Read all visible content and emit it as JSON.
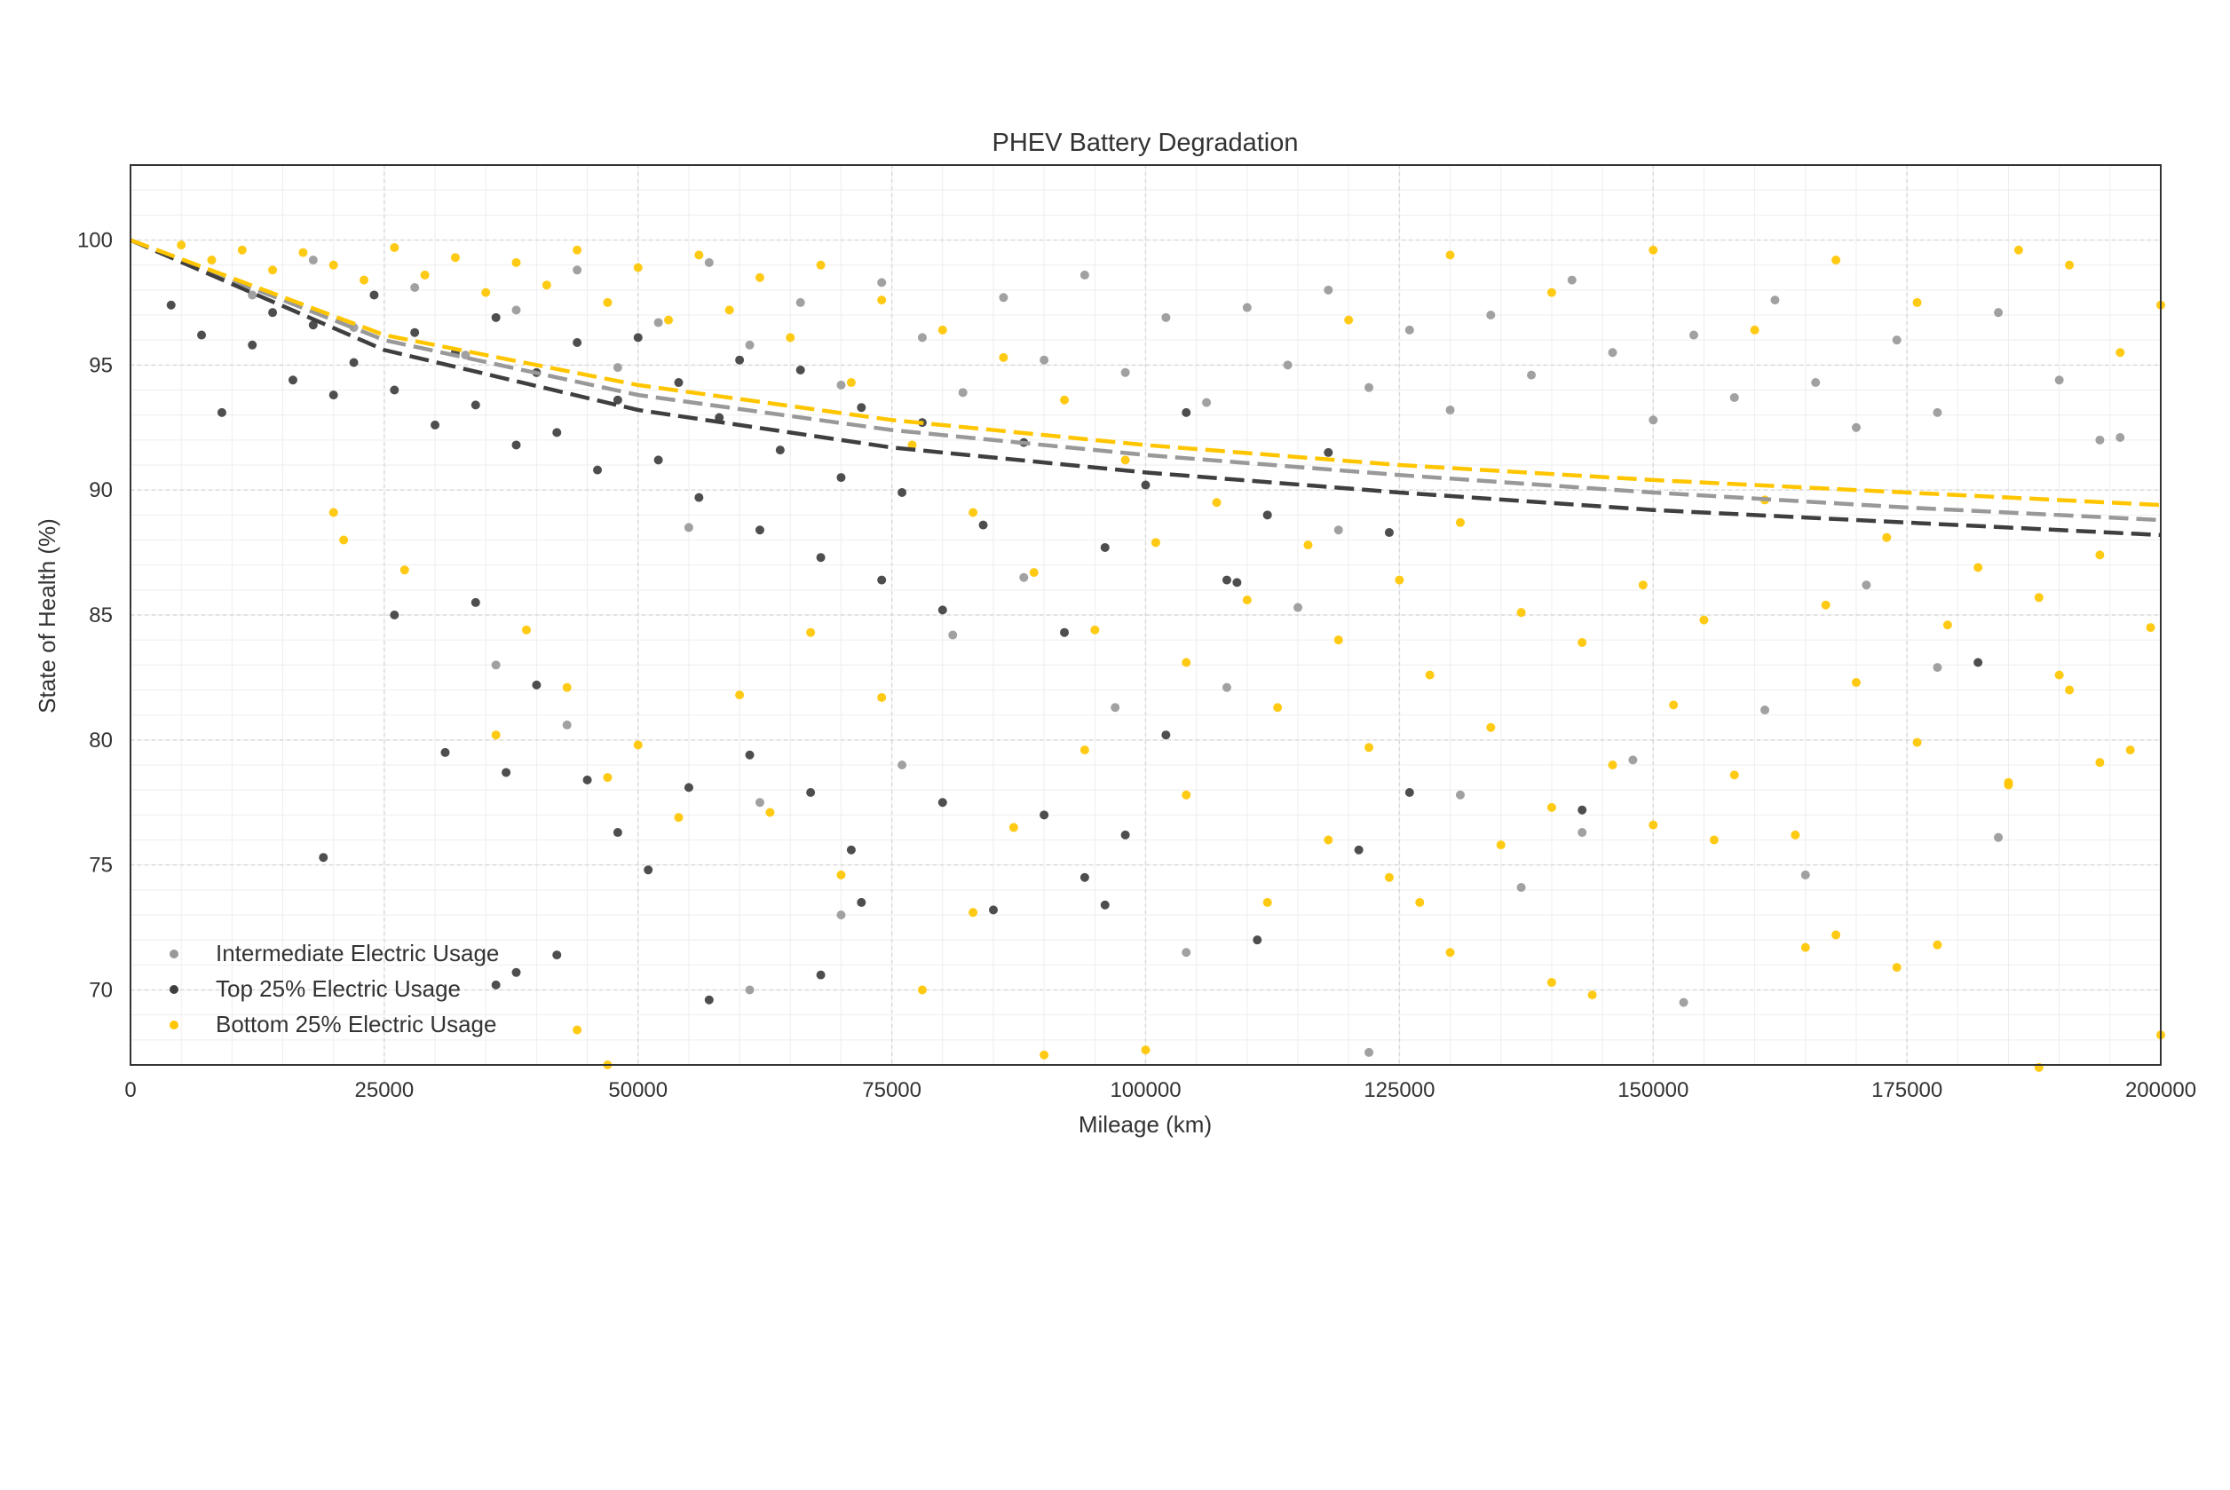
{
  "chart_data": {
    "type": "scatter",
    "title": "PHEV Battery Degradation",
    "xlabel": "Mileage (km)",
    "ylabel": "State of Health (%)",
    "xlim": [
      0,
      200000
    ],
    "ylim": [
      67,
      103
    ],
    "x_ticks": [
      0,
      25000,
      50000,
      75000,
      100000,
      125000,
      150000,
      175000,
      200000
    ],
    "x_tick_labels": [
      "0",
      "25000",
      "50000",
      "75000",
      "100000",
      "125000",
      "150000",
      "175000",
      "200000"
    ],
    "y_ticks": [
      70,
      75,
      80,
      85,
      90,
      95,
      100
    ],
    "y_tick_labels": [
      "70",
      "75",
      "80",
      "85",
      "90",
      "95",
      "100"
    ],
    "grid": true,
    "legend_position": "lower-left",
    "series": [
      {
        "name": "Intermediate Electric Usage",
        "color": "#999999",
        "trend": [
          [
            0,
            100
          ],
          [
            25000,
            96.0
          ],
          [
            50000,
            93.8
          ],
          [
            75000,
            92.4
          ],
          [
            100000,
            91.4
          ],
          [
            125000,
            90.6
          ],
          [
            150000,
            89.9
          ],
          [
            175000,
            89.3
          ],
          [
            200000,
            88.8
          ]
        ],
        "points": [
          [
            12000,
            97.8
          ],
          [
            18000,
            99.2
          ],
          [
            22000,
            96.5
          ],
          [
            28000,
            98.1
          ],
          [
            33000,
            95.4
          ],
          [
            38000,
            97.2
          ],
          [
            44000,
            98.8
          ],
          [
            48000,
            94.9
          ],
          [
            52000,
            96.7
          ],
          [
            57000,
            99.1
          ],
          [
            61000,
            95.8
          ],
          [
            66000,
            97.5
          ],
          [
            70000,
            94.2
          ],
          [
            74000,
            98.3
          ],
          [
            78000,
            96.1
          ],
          [
            82000,
            93.9
          ],
          [
            86000,
            97.7
          ],
          [
            90000,
            95.2
          ],
          [
            94000,
            98.6
          ],
          [
            98000,
            94.7
          ],
          [
            102000,
            96.9
          ],
          [
            106000,
            93.5
          ],
          [
            110000,
            97.3
          ],
          [
            114000,
            95.0
          ],
          [
            118000,
            98.0
          ],
          [
            122000,
            94.1
          ],
          [
            126000,
            96.4
          ],
          [
            130000,
            93.2
          ],
          [
            134000,
            97.0
          ],
          [
            138000,
            94.6
          ],
          [
            142000,
            98.4
          ],
          [
            146000,
            95.5
          ],
          [
            150000,
            92.8
          ],
          [
            154000,
            96.2
          ],
          [
            158000,
            93.7
          ],
          [
            162000,
            97.6
          ],
          [
            166000,
            94.3
          ],
          [
            170000,
            92.5
          ],
          [
            174000,
            96.0
          ],
          [
            178000,
            93.1
          ],
          [
            184000,
            97.1
          ],
          [
            190000,
            94.4
          ],
          [
            196000,
            92.1
          ],
          [
            36000,
            83.0
          ],
          [
            43000,
            80.6
          ],
          [
            62000,
            77.5
          ],
          [
            70000,
            73.0
          ],
          [
            76000,
            79.0
          ],
          [
            88000,
            86.5
          ],
          [
            97000,
            81.3
          ],
          [
            104000,
            71.5
          ],
          [
            108000,
            82.1
          ],
          [
            119000,
            88.4
          ],
          [
            122000,
            67.5
          ],
          [
            131000,
            77.8
          ],
          [
            137000,
            74.1
          ],
          [
            143000,
            76.3
          ],
          [
            148000,
            79.2
          ],
          [
            153000,
            69.5
          ],
          [
            161000,
            81.2
          ],
          [
            165000,
            74.6
          ],
          [
            171000,
            86.2
          ],
          [
            178000,
            82.9
          ],
          [
            184000,
            76.1
          ],
          [
            194000,
            92.0
          ],
          [
            61000,
            70.0
          ],
          [
            55000,
            88.5
          ],
          [
            81000,
            84.2
          ],
          [
            115000,
            85.3
          ]
        ]
      },
      {
        "name": "Top 25% Electric Usage",
        "color": "#3f3f3f",
        "trend": [
          [
            0,
            100
          ],
          [
            25000,
            95.6
          ],
          [
            50000,
            93.2
          ],
          [
            75000,
            91.7
          ],
          [
            100000,
            90.7
          ],
          [
            125000,
            89.9
          ],
          [
            150000,
            89.2
          ],
          [
            175000,
            88.7
          ],
          [
            200000,
            88.2
          ]
        ],
        "points": [
          [
            4000,
            97.4
          ],
          [
            7000,
            96.2
          ],
          [
            9000,
            93.1
          ],
          [
            12000,
            95.8
          ],
          [
            14000,
            97.1
          ],
          [
            16000,
            94.4
          ],
          [
            18000,
            96.6
          ],
          [
            20000,
            93.8
          ],
          [
            22000,
            95.1
          ],
          [
            24000,
            97.8
          ],
          [
            26000,
            94.0
          ],
          [
            28000,
            96.3
          ],
          [
            30000,
            92.6
          ],
          [
            32000,
            95.5
          ],
          [
            34000,
            93.4
          ],
          [
            36000,
            96.9
          ],
          [
            38000,
            91.8
          ],
          [
            40000,
            94.7
          ],
          [
            42000,
            92.3
          ],
          [
            44000,
            95.9
          ],
          [
            46000,
            90.8
          ],
          [
            48000,
            93.6
          ],
          [
            50000,
            96.1
          ],
          [
            52000,
            91.2
          ],
          [
            54000,
            94.3
          ],
          [
            56000,
            89.7
          ],
          [
            58000,
            92.9
          ],
          [
            60000,
            95.2
          ],
          [
            62000,
            88.4
          ],
          [
            64000,
            91.6
          ],
          [
            66000,
            94.8
          ],
          [
            68000,
            87.3
          ],
          [
            70000,
            90.5
          ],
          [
            72000,
            93.3
          ],
          [
            74000,
            86.4
          ],
          [
            76000,
            89.9
          ],
          [
            78000,
            92.7
          ],
          [
            80000,
            85.2
          ],
          [
            84000,
            88.6
          ],
          [
            88000,
            91.9
          ],
          [
            92000,
            84.3
          ],
          [
            96000,
            87.7
          ],
          [
            100000,
            90.2
          ],
          [
            104000,
            93.1
          ],
          [
            108000,
            86.4
          ],
          [
            112000,
            89.0
          ],
          [
            118000,
            91.5
          ],
          [
            124000,
            88.3
          ],
          [
            26000,
            85.0
          ],
          [
            31000,
            79.5
          ],
          [
            19000,
            75.3
          ],
          [
            37000,
            78.7
          ],
          [
            40000,
            82.2
          ],
          [
            45000,
            78.4
          ],
          [
            48000,
            76.3
          ],
          [
            51000,
            74.8
          ],
          [
            55000,
            78.1
          ],
          [
            57000,
            69.6
          ],
          [
            61000,
            79.4
          ],
          [
            67000,
            77.9
          ],
          [
            68000,
            70.6
          ],
          [
            71000,
            75.6
          ],
          [
            72000,
            73.5
          ],
          [
            80000,
            77.5
          ],
          [
            85000,
            73.2
          ],
          [
            90000,
            77.0
          ],
          [
            94000,
            74.5
          ],
          [
            96000,
            73.4
          ],
          [
            98000,
            76.2
          ],
          [
            102000,
            80.2
          ],
          [
            111000,
            72.0
          ],
          [
            121000,
            75.6
          ],
          [
            126000,
            77.9
          ],
          [
            143000,
            77.2
          ],
          [
            182000,
            83.1
          ],
          [
            42000,
            71.4
          ],
          [
            38000,
            70.7
          ],
          [
            36000,
            70.2
          ],
          [
            34000,
            85.5
          ],
          [
            109000,
            86.3
          ]
        ]
      },
      {
        "name": "Bottom 25% Electric Usage",
        "color": "#ffc600",
        "trend": [
          [
            0,
            100
          ],
          [
            25000,
            96.2
          ],
          [
            50000,
            94.2
          ],
          [
            75000,
            92.8
          ],
          [
            100000,
            91.8
          ],
          [
            125000,
            91.0
          ],
          [
            150000,
            90.4
          ],
          [
            175000,
            89.9
          ],
          [
            200000,
            89.4
          ]
        ],
        "points": [
          [
            5000,
            99.8
          ],
          [
            8000,
            99.2
          ],
          [
            11000,
            99.6
          ],
          [
            14000,
            98.8
          ],
          [
            17000,
            99.5
          ],
          [
            20000,
            99.0
          ],
          [
            23000,
            98.4
          ],
          [
            26000,
            99.7
          ],
          [
            29000,
            98.6
          ],
          [
            32000,
            99.3
          ],
          [
            35000,
            97.9
          ],
          [
            38000,
            99.1
          ],
          [
            41000,
            98.2
          ],
          [
            44000,
            99.6
          ],
          [
            47000,
            97.5
          ],
          [
            50000,
            98.9
          ],
          [
            53000,
            96.8
          ],
          [
            56000,
            99.4
          ],
          [
            59000,
            97.2
          ],
          [
            62000,
            98.5
          ],
          [
            65000,
            96.1
          ],
          [
            68000,
            99.0
          ],
          [
            71000,
            94.3
          ],
          [
            74000,
            97.6
          ],
          [
            77000,
            91.8
          ],
          [
            80000,
            96.4
          ],
          [
            83000,
            89.1
          ],
          [
            86000,
            95.3
          ],
          [
            89000,
            86.7
          ],
          [
            92000,
            93.6
          ],
          [
            95000,
            84.4
          ],
          [
            98000,
            91.2
          ],
          [
            101000,
            87.9
          ],
          [
            104000,
            83.1
          ],
          [
            107000,
            89.5
          ],
          [
            110000,
            85.6
          ],
          [
            113000,
            81.3
          ],
          [
            116000,
            87.8
          ],
          [
            119000,
            84.0
          ],
          [
            122000,
            79.7
          ],
          [
            125000,
            86.4
          ],
          [
            128000,
            82.6
          ],
          [
            131000,
            88.7
          ],
          [
            134000,
            80.5
          ],
          [
            137000,
            85.1
          ],
          [
            140000,
            77.3
          ],
          [
            143000,
            83.9
          ],
          [
            146000,
            79.0
          ],
          [
            149000,
            86.2
          ],
          [
            152000,
            81.4
          ],
          [
            155000,
            84.8
          ],
          [
            158000,
            78.6
          ],
          [
            161000,
            89.6
          ],
          [
            164000,
            76.2
          ],
          [
            167000,
            85.4
          ],
          [
            170000,
            82.3
          ],
          [
            173000,
            88.1
          ],
          [
            176000,
            79.9
          ],
          [
            179000,
            84.6
          ],
          [
            182000,
            86.9
          ],
          [
            185000,
            78.3
          ],
          [
            188000,
            85.7
          ],
          [
            191000,
            82.0
          ],
          [
            194000,
            87.4
          ],
          [
            197000,
            79.6
          ],
          [
            200000,
            97.4
          ],
          [
            199000,
            84.5
          ],
          [
            196000,
            95.5
          ],
          [
            191000,
            99.0
          ],
          [
            186000,
            99.6
          ],
          [
            176000,
            97.5
          ],
          [
            168000,
            99.2
          ],
          [
            160000,
            96.4
          ],
          [
            150000,
            99.6
          ],
          [
            140000,
            97.9
          ],
          [
            130000,
            99.4
          ],
          [
            120000,
            96.8
          ],
          [
            20000,
            89.1
          ],
          [
            21000,
            88.0
          ],
          [
            27000,
            86.8
          ],
          [
            36000,
            80.2
          ],
          [
            39000,
            84.4
          ],
          [
            43000,
            82.1
          ],
          [
            47000,
            78.5
          ],
          [
            50000,
            79.8
          ],
          [
            54000,
            76.9
          ],
          [
            60000,
            81.8
          ],
          [
            63000,
            77.1
          ],
          [
            67000,
            84.3
          ],
          [
            70000,
            74.6
          ],
          [
            74000,
            81.7
          ],
          [
            78000,
            70.0
          ],
          [
            83000,
            73.1
          ],
          [
            87000,
            76.5
          ],
          [
            90000,
            67.4
          ],
          [
            94000,
            79.6
          ],
          [
            100000,
            67.6
          ],
          [
            104000,
            77.8
          ],
          [
            112000,
            73.5
          ],
          [
            118000,
            76.0
          ],
          [
            124000,
            74.5
          ],
          [
            127000,
            73.5
          ],
          [
            130000,
            71.5
          ],
          [
            135000,
            75.8
          ],
          [
            140000,
            70.3
          ],
          [
            144000,
            69.8
          ],
          [
            150000,
            76.6
          ],
          [
            156000,
            76.0
          ],
          [
            165000,
            71.7
          ],
          [
            168000,
            72.2
          ],
          [
            174000,
            70.9
          ],
          [
            178000,
            71.8
          ],
          [
            185000,
            78.2
          ],
          [
            188000,
            66.9
          ],
          [
            190000,
            82.6
          ],
          [
            194000,
            79.1
          ],
          [
            200000,
            68.2
          ],
          [
            44000,
            68.4
          ],
          [
            47000,
            67.0
          ]
        ]
      }
    ]
  }
}
